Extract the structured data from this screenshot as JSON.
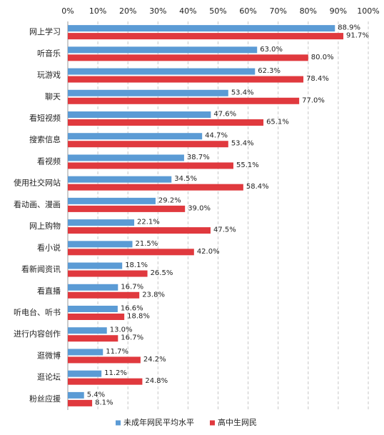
{
  "chart_data": {
    "type": "hbar",
    "categories": [
      "网上学习",
      "听音乐",
      "玩游戏",
      "聊天",
      "看短视频",
      "搜索信息",
      "看视频",
      "使用社交网站",
      "看动画、漫画",
      "网上购物",
      "看小说",
      "看新闻资讯",
      "看直播",
      "听电台、听书",
      "进行内容创作",
      "逛微博",
      "逛论坛",
      "粉丝应援"
    ],
    "series": [
      {
        "name": "未成年网民平均水平",
        "color": "#5b9bd5",
        "values": [
          88.9,
          63.0,
          62.3,
          53.4,
          47.6,
          44.7,
          38.7,
          34.5,
          29.2,
          22.1,
          21.5,
          18.1,
          16.7,
          16.6,
          13.0,
          11.7,
          11.2,
          5.4
        ],
        "value_labels": [
          "88.9%",
          "63.0%",
          "62.3%",
          "53.4%",
          "47.6%",
          "44.7%",
          "38.7%",
          "34.5%",
          "29.2%",
          "22.1%",
          "21.5%",
          "18.1%",
          "16.7%",
          "16.6%",
          "13.0%",
          "11.7%",
          "11.2%",
          "5.4%"
        ]
      },
      {
        "name": "高中生网民",
        "color": "#e0393e",
        "values": [
          91.7,
          80.0,
          78.4,
          77.0,
          65.1,
          53.4,
          55.1,
          58.4,
          39.0,
          47.5,
          42.0,
          26.5,
          23.8,
          18.8,
          16.7,
          24.2,
          24.8,
          8.1
        ],
        "value_labels": [
          "91.7%",
          "80.0%",
          "78.4%",
          "77.0%",
          "65.1%",
          "53.4%",
          "55.1%",
          "58.4%",
          "39.0%",
          "47.5%",
          "42.0%",
          "26.5%",
          "23.8%",
          "18.8%",
          "16.7%",
          "24.2%",
          "24.8%",
          "8.1%"
        ]
      }
    ],
    "xlim": [
      0,
      100
    ],
    "xticks": [
      {
        "value": 0,
        "label": "0%"
      },
      {
        "value": 10,
        "label": "10%"
      },
      {
        "value": 20,
        "label": "20%"
      },
      {
        "value": 30,
        "label": "30%"
      },
      {
        "value": 40,
        "label": "40%"
      },
      {
        "value": 50,
        "label": "50%"
      },
      {
        "value": 60,
        "label": "60%"
      },
      {
        "value": 70,
        "label": "70%"
      },
      {
        "value": 80,
        "label": "80%"
      },
      {
        "value": 90,
        "label": "90%"
      },
      {
        "value": 100,
        "label": "100%"
      }
    ],
    "grid": true,
    "legend": "bottom"
  }
}
